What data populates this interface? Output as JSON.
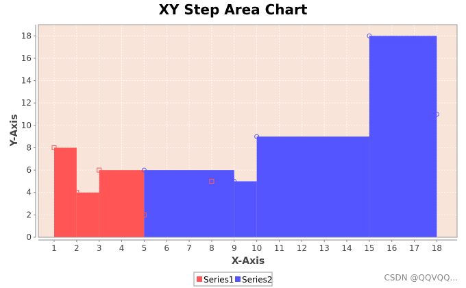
{
  "chart_data": {
    "type": "area",
    "step": true,
    "title": "XY Step Area Chart",
    "xlabel": "X-Axis",
    "ylabel": "Y-Axis",
    "xlim": [
      0.3,
      18.9
    ],
    "ylim": [
      0,
      19
    ],
    "xticks": [
      1,
      2,
      3,
      4,
      5,
      6,
      7,
      8,
      9,
      10,
      11,
      12,
      13,
      14,
      15,
      16,
      17,
      18
    ],
    "yticks": [
      0,
      2,
      4,
      6,
      8,
      10,
      12,
      14,
      16,
      18
    ],
    "grid": true,
    "background": "#f8e4d9",
    "legend": "bottom",
    "series": [
      {
        "name": "Series1",
        "color": "#ff5555",
        "marker": "square",
        "x": [
          1,
          2,
          3,
          5,
          8
        ],
        "y": [
          8,
          4,
          6,
          2,
          5
        ]
      },
      {
        "name": "Series2",
        "color": "#5555ff",
        "marker": "circle",
        "x": [
          5,
          9,
          10,
          15,
          18
        ],
        "y": [
          6,
          5,
          9,
          18,
          11
        ]
      }
    ]
  },
  "watermark": "CSDN @QQVQQ..."
}
